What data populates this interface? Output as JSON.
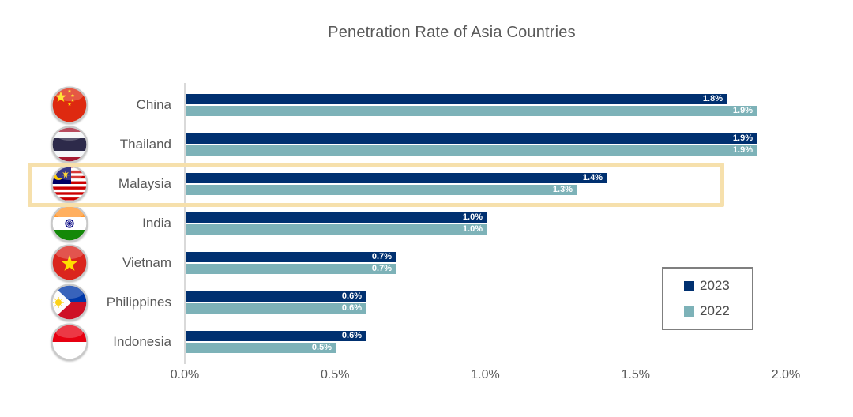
{
  "title": "Penetration Rate of Asia Countries",
  "legend": {
    "items": [
      {
        "label": "2023",
        "color": "#003070"
      },
      {
        "label": "2022",
        "color": "#7DB2B8"
      }
    ]
  },
  "highlight": {
    "country": "Malaysia",
    "border_color": "#F6E0AC"
  },
  "colors": {
    "series_2023": "#003070",
    "series_2022": "#7DB2B8",
    "axis_line": "#D9D9D9",
    "text": "#595959",
    "legend_border": "#7F7F7F"
  },
  "chart_data": {
    "type": "bar",
    "orientation": "horizontal",
    "title": "Penetration Rate of Asia Countries",
    "categories": [
      "China",
      "Thailand",
      "Malaysia",
      "India",
      "Vietnam",
      "Philippines",
      "Indonesia"
    ],
    "flags": [
      "china-flag-icon",
      "thailand-flag-icon",
      "malaysia-flag-icon",
      "india-flag-icon",
      "vietnam-flag-icon",
      "philippines-flag-icon",
      "indonesia-flag-icon"
    ],
    "series": [
      {
        "name": "2023",
        "color": "#003070",
        "values": [
          1.8,
          1.9,
          1.4,
          1.0,
          0.7,
          0.6,
          0.6
        ],
        "labels": [
          "1.8%",
          "1.9%",
          "1.4%",
          "1.0%",
          "0.7%",
          "0.6%",
          "0.6%"
        ]
      },
      {
        "name": "2022",
        "color": "#7DB2B8",
        "values": [
          1.9,
          1.9,
          1.3,
          1.0,
          0.7,
          0.6,
          0.5
        ],
        "labels": [
          "1.9%",
          "1.9%",
          "1.3%",
          "1.0%",
          "0.7%",
          "0.6%",
          "0.5%"
        ]
      }
    ],
    "x_axis": {
      "min": 0,
      "max": 2.0,
      "ticks": [
        "0.0%",
        "0.5%",
        "1.0%",
        "1.5%",
        "2.0%"
      ]
    },
    "legend_position": "right",
    "grid": false
  }
}
